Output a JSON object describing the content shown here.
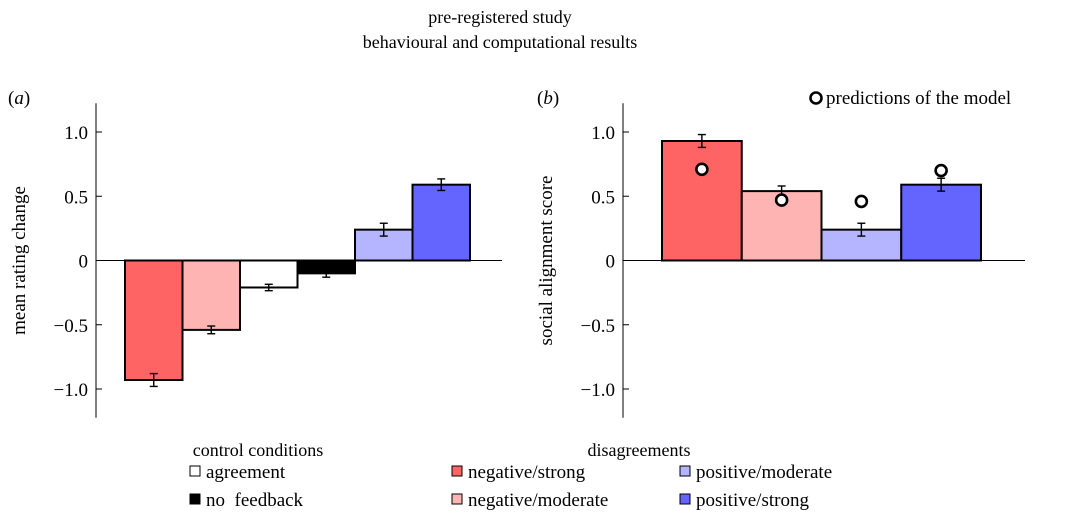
{
  "title_lines": [
    "pre-registered study",
    "behavioural and computational results"
  ],
  "colors": {
    "negative_strong": "#ff6464",
    "negative_moderate": "#ffb4b4",
    "agreement": "#ffffff",
    "no_feedback": "#000000",
    "positive_moderate": "#b4b4ff",
    "positive_strong": "#6464ff"
  },
  "legend": {
    "control_heading": "control conditions",
    "disagreements_heading": "disagreements",
    "items": [
      {
        "label": "agreement",
        "color_key": "agreement"
      },
      {
        "label": "no  feedback",
        "color_key": "no_feedback"
      },
      {
        "label": "negative/strong",
        "color_key": "negative_strong"
      },
      {
        "label": "negative/moderate",
        "color_key": "negative_moderate"
      },
      {
        "label": "positive/moderate",
        "color_key": "positive_moderate"
      },
      {
        "label": "positive/strong",
        "color_key": "positive_strong"
      }
    ]
  },
  "chart_data": [
    {
      "type": "bar",
      "panel_label": "(a)",
      "ylabel": "mean rating change",
      "ylim": [
        -1.2,
        1.2
      ],
      "yticks": [
        1.0,
        0.5,
        0,
        -0.5,
        -1.0
      ],
      "ytick_labels": [
        "1.0",
        "0.5",
        "0",
        "−0.5",
        "−1.0"
      ],
      "categories": [
        "negative/strong",
        "negative/moderate",
        "agreement",
        "no  feedback",
        "positive/moderate",
        "positive/strong"
      ],
      "values": [
        -0.93,
        -0.54,
        -0.21,
        -0.1,
        0.24,
        0.59
      ],
      "errors": [
        0.05,
        0.03,
        0.025,
        0.03,
        0.05,
        0.045
      ],
      "color_keys": [
        "negative_strong",
        "negative_moderate",
        "agreement",
        "no_feedback",
        "positive_moderate",
        "positive_strong"
      ]
    },
    {
      "type": "bar",
      "panel_label": "(b)",
      "ylabel": "social alignment score",
      "ylim": [
        -1.2,
        1.2
      ],
      "yticks": [
        1.0,
        0.5,
        0,
        -0.5,
        -1.0
      ],
      "ytick_labels": [
        "1.0",
        "0.5",
        "0",
        "−0.5",
        "−1.0"
      ],
      "categories": [
        "negative/strong",
        "negative/moderate",
        "positive/moderate",
        "positive/strong"
      ],
      "values": [
        0.93,
        0.54,
        0.24,
        0.59
      ],
      "errors": [
        0.05,
        0.04,
        0.05,
        0.05
      ],
      "model_predictions": [
        0.71,
        0.47,
        0.46,
        0.7
      ],
      "color_keys": [
        "negative_strong",
        "negative_moderate",
        "positive_moderate",
        "positive_strong"
      ],
      "marker_legend": "predictions of the model"
    }
  ]
}
